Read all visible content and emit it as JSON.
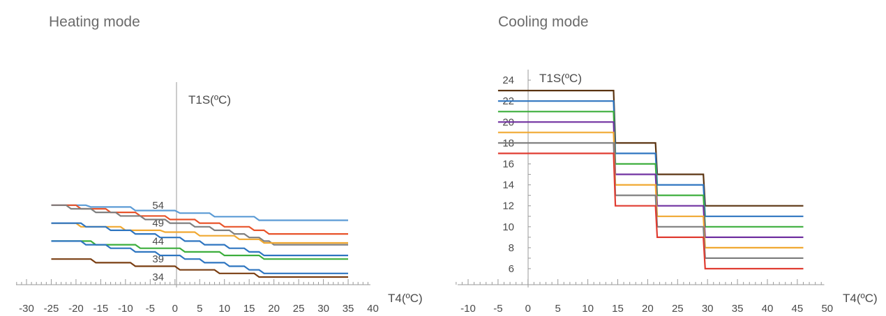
{
  "chart_data": [
    {
      "type": "line",
      "title": "Heating mode",
      "xlabel": "T4(ºC)",
      "ylabel": "T1S(ºC)",
      "xlim": [
        -30,
        40
      ],
      "x_ticks": [
        -30,
        -25,
        -20,
        -15,
        -10,
        -5,
        0,
        5,
        10,
        15,
        20,
        25,
        30,
        35,
        40
      ],
      "x_tick_labels": [
        "-30",
        "-25",
        "-20",
        "-15",
        "-10",
        "-5",
        "0",
        "5",
        "10",
        "15",
        "20",
        "25",
        "30",
        "35",
        "40"
      ],
      "y_ticks": [
        34,
        39,
        44,
        49,
        54
      ],
      "y_tick_labels": [
        "34",
        "39",
        "44",
        "49",
        "54"
      ],
      "ylim": [
        33,
        56
      ],
      "grid": false,
      "series": [
        {
          "color": "#5b9bd5",
          "points": [
            [
              -25,
              54
            ],
            [
              -18,
              54
            ],
            [
              -17,
              53.5
            ],
            [
              -9,
              53.5
            ],
            [
              -8,
              52.5
            ],
            [
              0,
              52.5
            ],
            [
              1,
              51.8
            ],
            [
              7,
              51.8
            ],
            [
              8,
              50.8
            ],
            [
              16,
              50.8
            ],
            [
              17,
              49.8
            ],
            [
              35,
              49.8
            ]
          ]
        },
        {
          "color": "#e8532a",
          "points": [
            [
              -25,
              54
            ],
            [
              -20,
              54
            ],
            [
              -19,
              53
            ],
            [
              -14,
              53
            ],
            [
              -13,
              52
            ],
            [
              -8,
              52
            ],
            [
              -7,
              51
            ],
            [
              -2,
              51
            ],
            [
              -1,
              50
            ],
            [
              4,
              50
            ],
            [
              5,
              49
            ],
            [
              9,
              49
            ],
            [
              10,
              48
            ],
            [
              15,
              48
            ],
            [
              16,
              47
            ],
            [
              18,
              47
            ],
            [
              19,
              46
            ],
            [
              35,
              46
            ]
          ]
        },
        {
          "color": "#7f7f7f",
          "points": [
            [
              -25,
              54
            ],
            [
              -22,
              54
            ],
            [
              -21,
              53
            ],
            [
              -17,
              53
            ],
            [
              -16,
              52
            ],
            [
              -12,
              52
            ],
            [
              -11,
              51
            ],
            [
              -7,
              51
            ],
            [
              -6,
              50
            ],
            [
              -2,
              50
            ],
            [
              -1,
              49
            ],
            [
              3,
              49
            ],
            [
              4,
              48
            ],
            [
              7,
              48
            ],
            [
              8,
              47
            ],
            [
              11,
              47
            ],
            [
              12,
              46
            ],
            [
              14,
              46
            ],
            [
              15,
              45
            ],
            [
              17,
              45
            ],
            [
              18,
              44
            ],
            [
              19,
              44
            ],
            [
              20,
              43
            ],
            [
              35,
              43
            ]
          ]
        },
        {
          "color": "#f0a830",
          "points": [
            [
              -25,
              49
            ],
            [
              -20,
              49
            ],
            [
              -19,
              48
            ],
            [
              -11,
              48
            ],
            [
              -10,
              47
            ],
            [
              -3,
              47
            ],
            [
              -2,
              46.5
            ],
            [
              4,
              46.5
            ],
            [
              5,
              45.5
            ],
            [
              12,
              45.5
            ],
            [
              13,
              44.5
            ],
            [
              17,
              44.5
            ],
            [
              18,
              43.5
            ],
            [
              35,
              43.5
            ]
          ]
        },
        {
          "color": "#2e75c0",
          "points": [
            [
              -25,
              49
            ],
            [
              -19,
              49
            ],
            [
              -18,
              48
            ],
            [
              -14,
              48
            ],
            [
              -13,
              47
            ],
            [
              -9,
              47
            ],
            [
              -8,
              46
            ],
            [
              -4,
              46
            ],
            [
              -3,
              45
            ],
            [
              1,
              45
            ],
            [
              2,
              44
            ],
            [
              5,
              44
            ],
            [
              6,
              43
            ],
            [
              10,
              43
            ],
            [
              11,
              42
            ],
            [
              14,
              42
            ],
            [
              15,
              41
            ],
            [
              17,
              41
            ],
            [
              18,
              40
            ],
            [
              35,
              40
            ]
          ]
        },
        {
          "color": "#3cae3c",
          "points": [
            [
              -25,
              44
            ],
            [
              -17,
              44
            ],
            [
              -16,
              43
            ],
            [
              -8,
              43
            ],
            [
              -7,
              42
            ],
            [
              1,
              42
            ],
            [
              2,
              41
            ],
            [
              9,
              41
            ],
            [
              10,
              40
            ],
            [
              17,
              40
            ],
            [
              18,
              39
            ],
            [
              35,
              39
            ]
          ]
        },
        {
          "color": "#2e75c0",
          "points": [
            [
              -25,
              44
            ],
            [
              -19,
              44
            ],
            [
              -18,
              43
            ],
            [
              -14,
              43
            ],
            [
              -13,
              42
            ],
            [
              -9,
              42
            ],
            [
              -8,
              41
            ],
            [
              -4,
              41
            ],
            [
              -3,
              40
            ],
            [
              1,
              40
            ],
            [
              2,
              39
            ],
            [
              5,
              39
            ],
            [
              6,
              38
            ],
            [
              10,
              38
            ],
            [
              11,
              37
            ],
            [
              14,
              37
            ],
            [
              15,
              36
            ],
            [
              17,
              36
            ],
            [
              18,
              35
            ],
            [
              35,
              35
            ]
          ]
        },
        {
          "color": "#7a3e12",
          "points": [
            [
              -25,
              39
            ],
            [
              -17,
              39
            ],
            [
              -16,
              38
            ],
            [
              -9,
              38
            ],
            [
              -8,
              37
            ],
            [
              0,
              37
            ],
            [
              1,
              36
            ],
            [
              8,
              36
            ],
            [
              9,
              35
            ],
            [
              16,
              35
            ],
            [
              17,
              34
            ],
            [
              35,
              34
            ]
          ]
        }
      ]
    },
    {
      "type": "line",
      "title": "Cooling mode",
      "xlabel": "T4(ºC)",
      "ylabel": "T1S(ºC)",
      "xlim": [
        -10,
        50
      ],
      "x_ticks": [
        -10,
        -5,
        0,
        5,
        10,
        15,
        20,
        25,
        30,
        35,
        40,
        45,
        50
      ],
      "x_tick_labels": [
        "-10",
        "-5",
        "0",
        "5",
        "10",
        "15",
        "20",
        "25",
        "30",
        "35",
        "40",
        "45",
        "50"
      ],
      "y_ticks": [
        6,
        8,
        10,
        12,
        14,
        16,
        18,
        20,
        22,
        24
      ],
      "y_tick_labels": [
        "6",
        "8",
        "10",
        "12",
        "14",
        "16",
        "18",
        "20",
        "22",
        "24"
      ],
      "ylim": [
        4,
        25
      ],
      "grid": false,
      "series": [
        {
          "color": "#5a3310",
          "points": [
            [
              -5,
              23
            ],
            [
              14.3,
              23
            ],
            [
              14.6,
              18
            ],
            [
              21.3,
              18
            ],
            [
              21.6,
              15
            ],
            [
              29.3,
              15
            ],
            [
              29.6,
              12
            ],
            [
              46,
              12
            ]
          ]
        },
        {
          "color": "#2e75c0",
          "points": [
            [
              -5,
              22
            ],
            [
              14.3,
              22
            ],
            [
              14.6,
              17
            ],
            [
              21.3,
              17
            ],
            [
              21.6,
              14
            ],
            [
              29.3,
              14
            ],
            [
              29.6,
              11
            ],
            [
              46,
              11
            ]
          ]
        },
        {
          "color": "#3cae3c",
          "points": [
            [
              -5,
              21
            ],
            [
              14.3,
              21
            ],
            [
              14.6,
              16
            ],
            [
              21.3,
              16
            ],
            [
              21.6,
              13
            ],
            [
              29.3,
              13
            ],
            [
              29.6,
              10
            ],
            [
              46,
              10
            ]
          ]
        },
        {
          "color": "#7030a0",
          "points": [
            [
              -5,
              20
            ],
            [
              14.3,
              20
            ],
            [
              14.6,
              15
            ],
            [
              21.3,
              15
            ],
            [
              21.6,
              12
            ],
            [
              29.3,
              12
            ],
            [
              29.6,
              9
            ],
            [
              46,
              9
            ]
          ]
        },
        {
          "color": "#f0a830",
          "points": [
            [
              -5,
              19
            ],
            [
              14.3,
              19
            ],
            [
              14.6,
              14
            ],
            [
              21.3,
              14
            ],
            [
              21.6,
              11
            ],
            [
              29.3,
              11
            ],
            [
              29.6,
              8
            ],
            [
              46,
              8
            ]
          ]
        },
        {
          "color": "#7f7f7f",
          "points": [
            [
              -5,
              18
            ],
            [
              14.3,
              18
            ],
            [
              14.6,
              13
            ],
            [
              21.3,
              13
            ],
            [
              21.6,
              10
            ],
            [
              29.3,
              10
            ],
            [
              29.6,
              7
            ],
            [
              46,
              7
            ]
          ]
        },
        {
          "color": "#e03c31",
          "points": [
            [
              -5,
              17
            ],
            [
              14.3,
              17
            ],
            [
              14.6,
              12
            ],
            [
              21.3,
              12
            ],
            [
              21.6,
              9
            ],
            [
              29.3,
              9
            ],
            [
              29.6,
              6
            ],
            [
              46,
              6
            ]
          ]
        }
      ]
    }
  ]
}
